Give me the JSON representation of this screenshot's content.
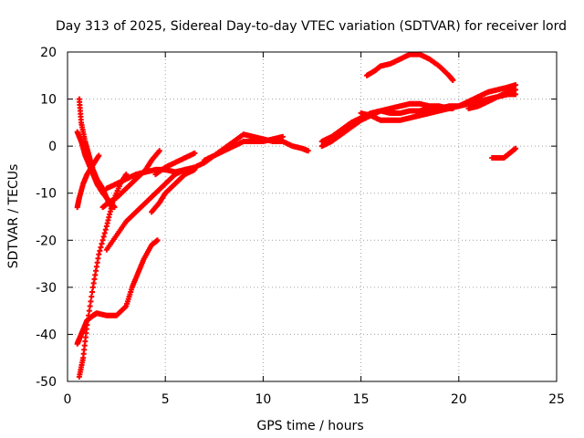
{
  "chart_data": {
    "type": "scatter",
    "title": "Day 313 of 2025, Sidereal Day-to-day VTEC variation (SDTVAR) for receiver lord",
    "xlabel": "GPS time / hours",
    "ylabel": "SDTVAR / TECUs",
    "xlim": [
      0,
      25
    ],
    "ylim": [
      -50,
      20
    ],
    "xticks": [
      0,
      5,
      10,
      15,
      20,
      25
    ],
    "yticks": [
      -50,
      -40,
      -30,
      -20,
      -10,
      0,
      10,
      20
    ],
    "grid": true,
    "legend": "none",
    "marker": "+",
    "color": "#ff0000",
    "series": [
      {
        "name": "arc-1",
        "x": [
          0.6,
          0.7,
          0.9,
          1.1,
          1.3,
          1.5,
          1.8,
          2.1,
          2.3
        ],
        "y": [
          10,
          5,
          1,
          -2,
          -5,
          -7,
          -9,
          -12,
          -13
        ]
      },
      {
        "name": "arc-2",
        "x": [
          0.5,
          0.6,
          0.8,
          1.0,
          1.3,
          1.6
        ],
        "y": [
          -13,
          -11,
          -8,
          -6,
          -4,
          -2
        ]
      },
      {
        "name": "arc-3",
        "x": [
          0.5,
          0.7,
          0.9,
          1.2,
          1.5,
          1.8,
          2.2,
          2.4
        ],
        "y": [
          3,
          1,
          -2,
          -5,
          -8,
          -10,
          -12,
          -13
        ]
      },
      {
        "name": "arc-4",
        "x": [
          0.5,
          0.6,
          0.8,
          1.0,
          1.3,
          1.5,
          2.0,
          2.5,
          3.0,
          3.3,
          3.6,
          3.9,
          4.3,
          4.6
        ],
        "y": [
          -42,
          -41,
          -39,
          -37,
          -36,
          -35.5,
          -36,
          -36,
          -34,
          -30,
          -27,
          -24,
          -21,
          -20
        ]
      },
      {
        "name": "arc-5",
        "x": [
          0.6,
          0.8,
          1.0,
          1.3,
          1.6,
          2.0,
          2.3,
          2.7,
          3.0
        ],
        "y": [
          -49,
          -45,
          -38,
          -30,
          -23,
          -17,
          -12,
          -8,
          -6
        ]
      },
      {
        "name": "arc-6",
        "x": [
          1.8,
          2.1,
          2.5,
          3.0,
          3.5,
          4.0,
          4.3,
          4.7
        ],
        "y": [
          -13,
          -12,
          -11,
          -9,
          -7,
          -5,
          -3,
          -1
        ]
      },
      {
        "name": "arc-7",
        "x": [
          2.0,
          2.5,
          3.0,
          3.5,
          4.0,
          4.5,
          5.0,
          5.5,
          6.0
        ],
        "y": [
          -22,
          -19,
          -16,
          -14,
          -12,
          -10,
          -8,
          -6,
          -5
        ]
      },
      {
        "name": "arc-8",
        "x": [
          2.0,
          2.5,
          3.0,
          3.5,
          4.0,
          4.5,
          5.0,
          5.5,
          6.0,
          6.5,
          7.0,
          7.5,
          8.0,
          8.5,
          9.0,
          9.5,
          10.0,
          10.5,
          11.0
        ],
        "y": [
          -9,
          -8,
          -7,
          -6,
          -5.5,
          -5,
          -5,
          -5.5,
          -5,
          -4.5,
          -3.5,
          -2,
          -1,
          0,
          1,
          1,
          1,
          1.5,
          2
        ]
      },
      {
        "name": "arc-9",
        "x": [
          4.3,
          4.7,
          5.0,
          5.5,
          6.0,
          6.5
        ],
        "y": [
          -14,
          -12,
          -10,
          -8,
          -6,
          -5
        ]
      },
      {
        "name": "arc-10",
        "x": [
          4.5,
          5.0,
          5.5,
          6.0,
          6.5
        ],
        "y": [
          -6,
          -4.5,
          -3.5,
          -2.5,
          -1.5
        ]
      },
      {
        "name": "arc-11",
        "x": [
          7.0,
          7.5,
          8.0,
          8.5,
          9.0,
          9.5,
          10.0,
          10.5,
          11.0,
          11.5,
          12.0,
          12.3
        ],
        "y": [
          -3,
          -2,
          -0.5,
          1,
          2.5,
          2,
          1.5,
          1,
          1,
          0,
          -0.5,
          -1
        ]
      },
      {
        "name": "arc-12",
        "x": [
          13.0,
          13.5,
          14.0,
          14.5,
          15.0,
          15.5,
          16.0,
          16.5,
          17.0,
          17.5,
          18.0,
          18.5,
          19.0,
          19.5,
          20.0,
          20.5,
          21.0,
          21.5,
          22.0,
          22.5,
          22.9
        ],
        "y": [
          1,
          2,
          3.5,
          5,
          6,
          7,
          7.5,
          7,
          7,
          7.5,
          7.5,
          8,
          8,
          8.5,
          8.5,
          9,
          9.5,
          10,
          10.5,
          11,
          11
        ]
      },
      {
        "name": "arc-13",
        "x": [
          13.0,
          13.5,
          14.0,
          14.5,
          15.0,
          15.5,
          16.0,
          16.5,
          17.0,
          17.5,
          18.0,
          18.5,
          19.0,
          19.5,
          20.0,
          20.5,
          21.0,
          21.5,
          22.0,
          22.5,
          22.9
        ],
        "y": [
          0,
          1,
          2.5,
          4,
          5.5,
          6.5,
          7.5,
          8,
          8.5,
          9,
          9,
          8.5,
          8.5,
          8,
          8.5,
          9.5,
          10.5,
          11.5,
          12,
          12.5,
          13
        ]
      },
      {
        "name": "arc-14",
        "x": [
          15.0,
          15.5,
          16.0,
          16.5,
          17.0,
          17.5,
          18.0,
          18.5,
          19.0,
          19.5,
          19.7
        ],
        "y": [
          7,
          6.5,
          5.5,
          5.5,
          5.5,
          6,
          6.5,
          7,
          7.5,
          8,
          8
        ]
      },
      {
        "name": "arc-15",
        "x": [
          15.3,
          15.7,
          16.0,
          16.5,
          17.0,
          17.5,
          18.0,
          18.5,
          19.0,
          19.5,
          19.7
        ],
        "y": [
          15,
          16,
          17,
          17.5,
          18.5,
          19.5,
          19.5,
          18.5,
          17,
          15,
          14
        ]
      },
      {
        "name": "arc-16",
        "x": [
          21.7,
          22.0,
          22.3,
          22.6,
          22.9
        ],
        "y": [
          -2.5,
          -2.5,
          -2.5,
          -1.5,
          -0.5
        ]
      },
      {
        "name": "arc-17",
        "x": [
          20.5,
          21.0,
          21.5,
          22.0,
          22.5,
          22.9
        ],
        "y": [
          8,
          8.5,
          9.5,
          10.5,
          11.5,
          12
        ]
      }
    ]
  }
}
